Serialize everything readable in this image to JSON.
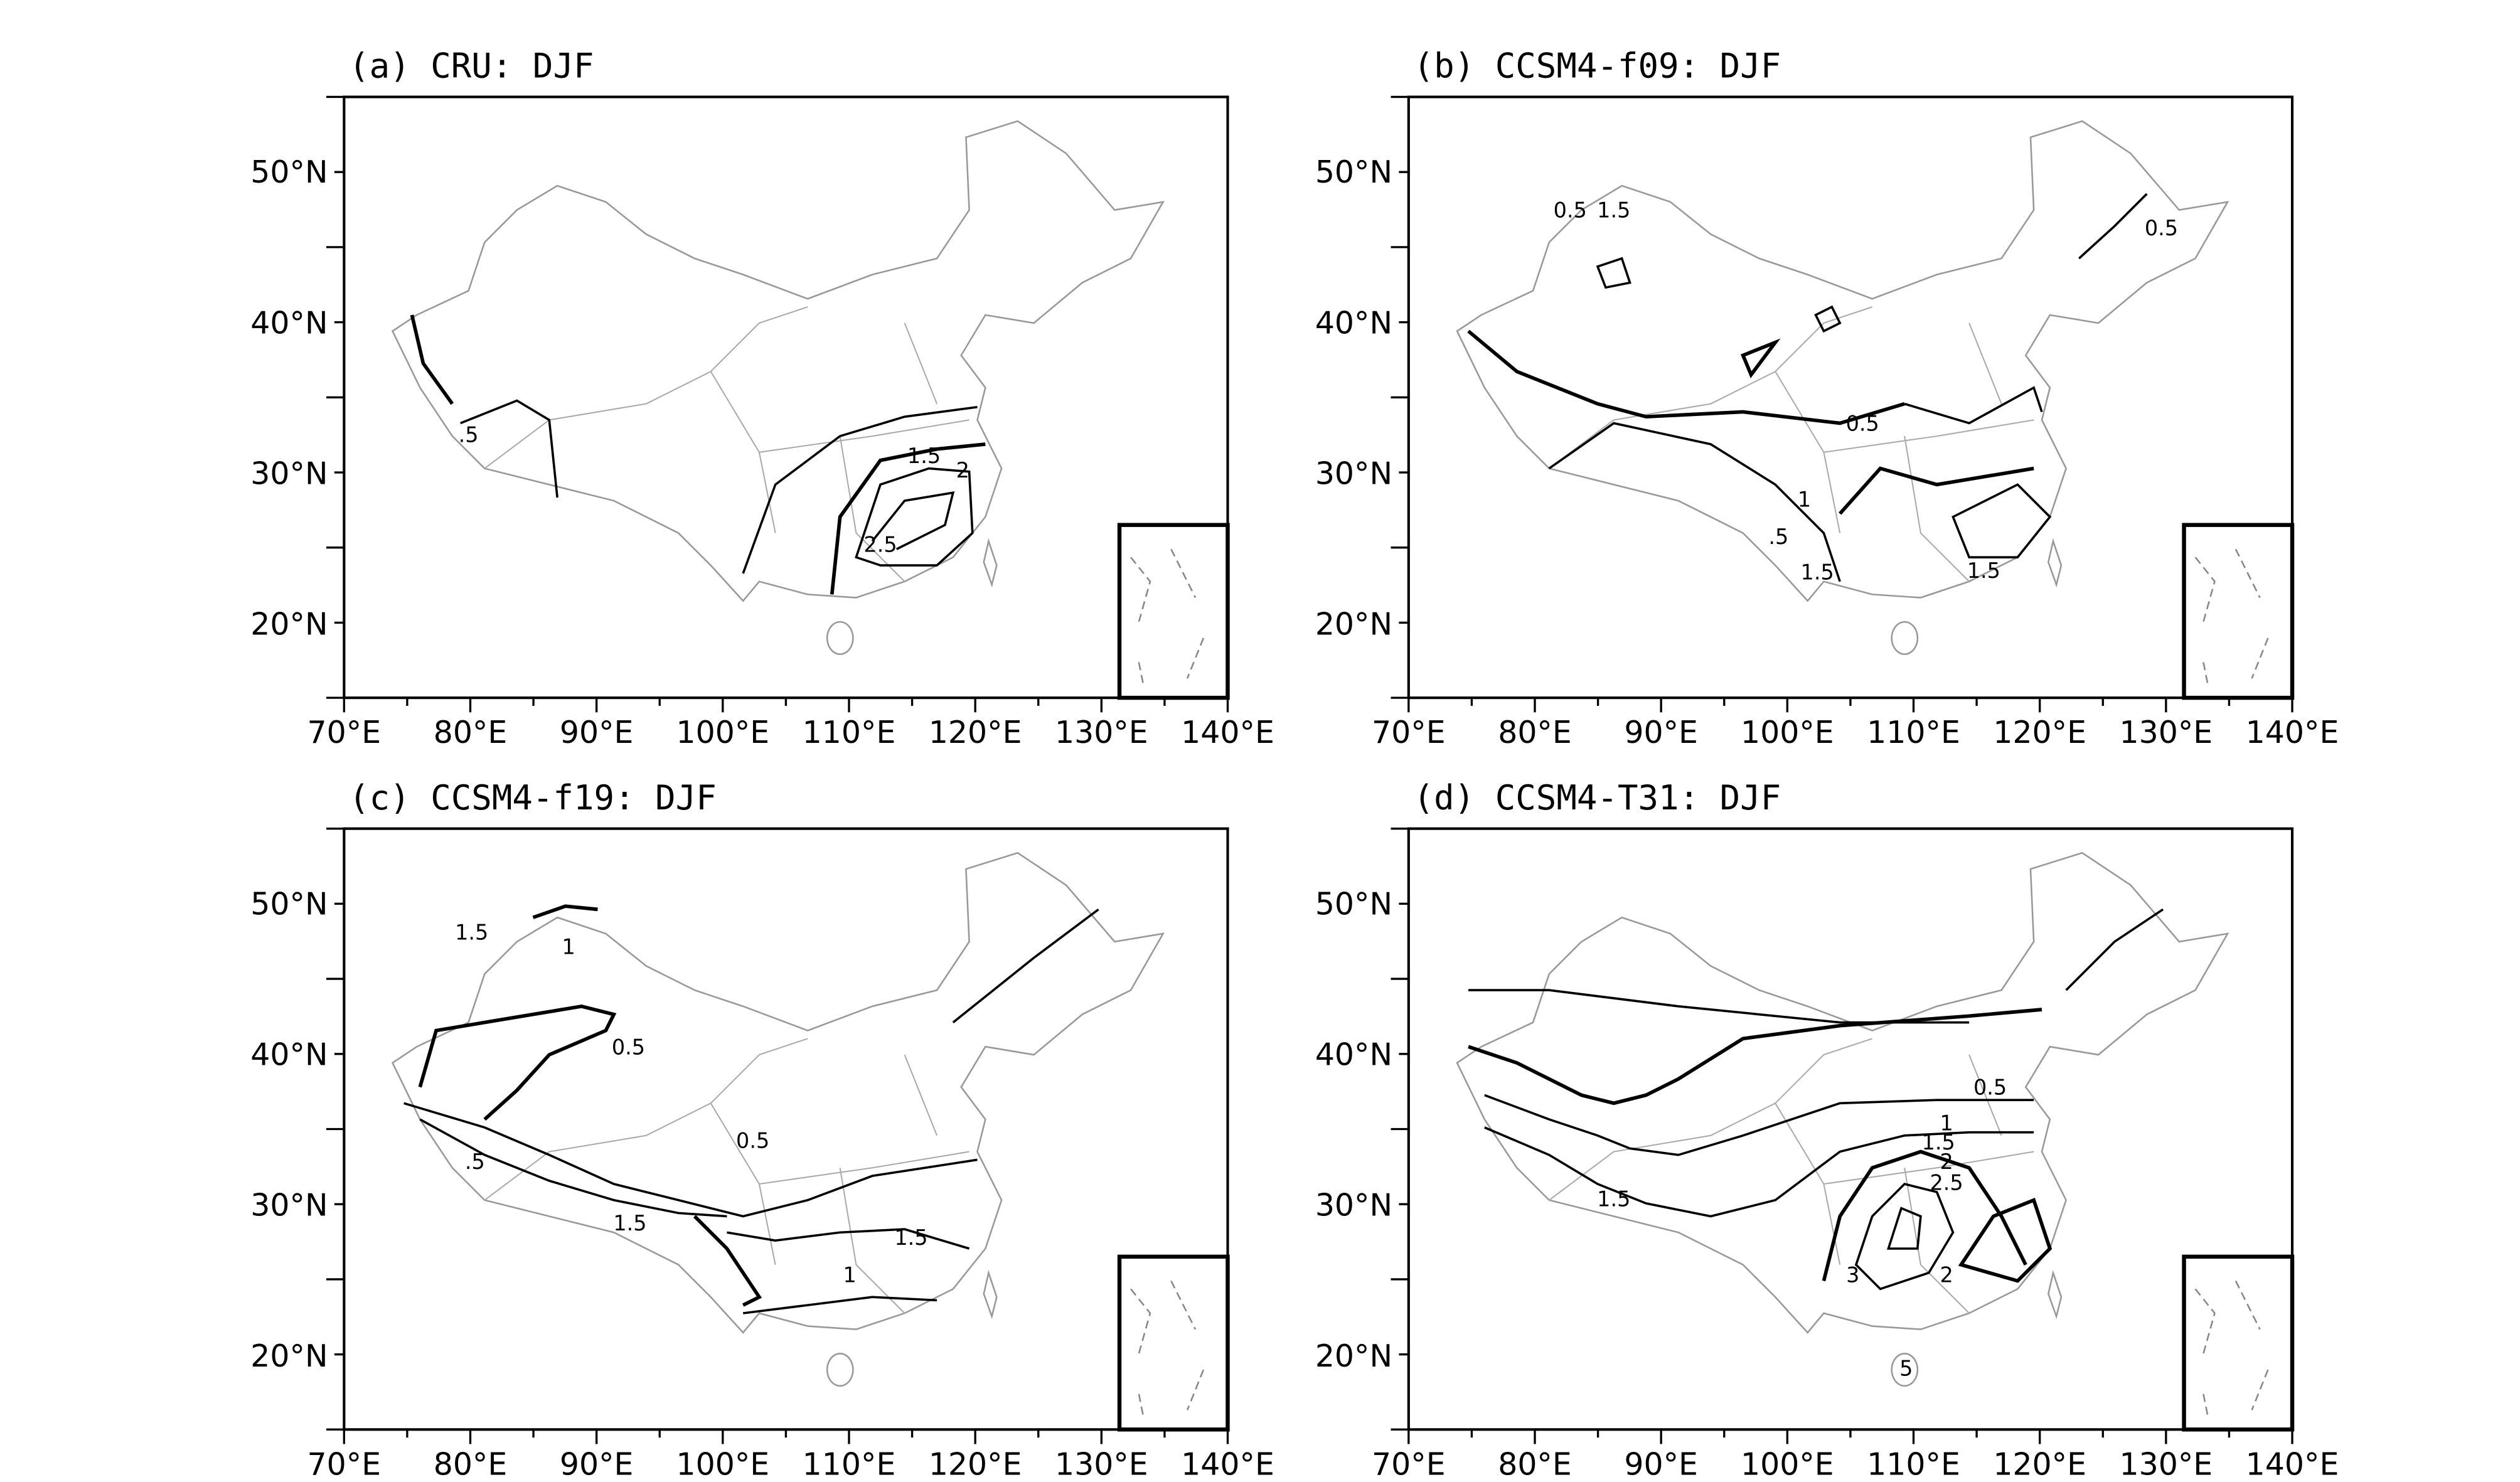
{
  "x_axis_labels": [
    "70°E",
    "80°E",
    "90°E",
    "100°E",
    "110°E",
    "120°E",
    "130°E",
    "140°E"
  ],
  "y_axis_labels": [
    "20°N",
    "30°N",
    "40°N",
    "50°N"
  ],
  "panels": [
    {
      "title": "(a) CRU: DJF",
      "contour_labels": [
        ".5",
        "1.5",
        "2",
        "2.5"
      ]
    },
    {
      "title": "(b) CCSM4-f09: DJF",
      "contour_labels": [
        "0.5",
        "1.5",
        "0.5",
        "0.5",
        "1",
        ".5",
        "1.5",
        "1.5"
      ]
    },
    {
      "title": "(c) CCSM4-f19: DJF",
      "contour_labels": [
        "1.5",
        "1",
        "0.5",
        "0.5",
        ".5",
        "1.5",
        "1.5",
        "1"
      ]
    },
    {
      "title": "(d) CCSM4-T31: DJF",
      "contour_labels": [
        "0.5",
        "1",
        "1.5",
        "2",
        "2.5",
        "1.5",
        "3",
        "2",
        "5"
      ]
    }
  ]
}
